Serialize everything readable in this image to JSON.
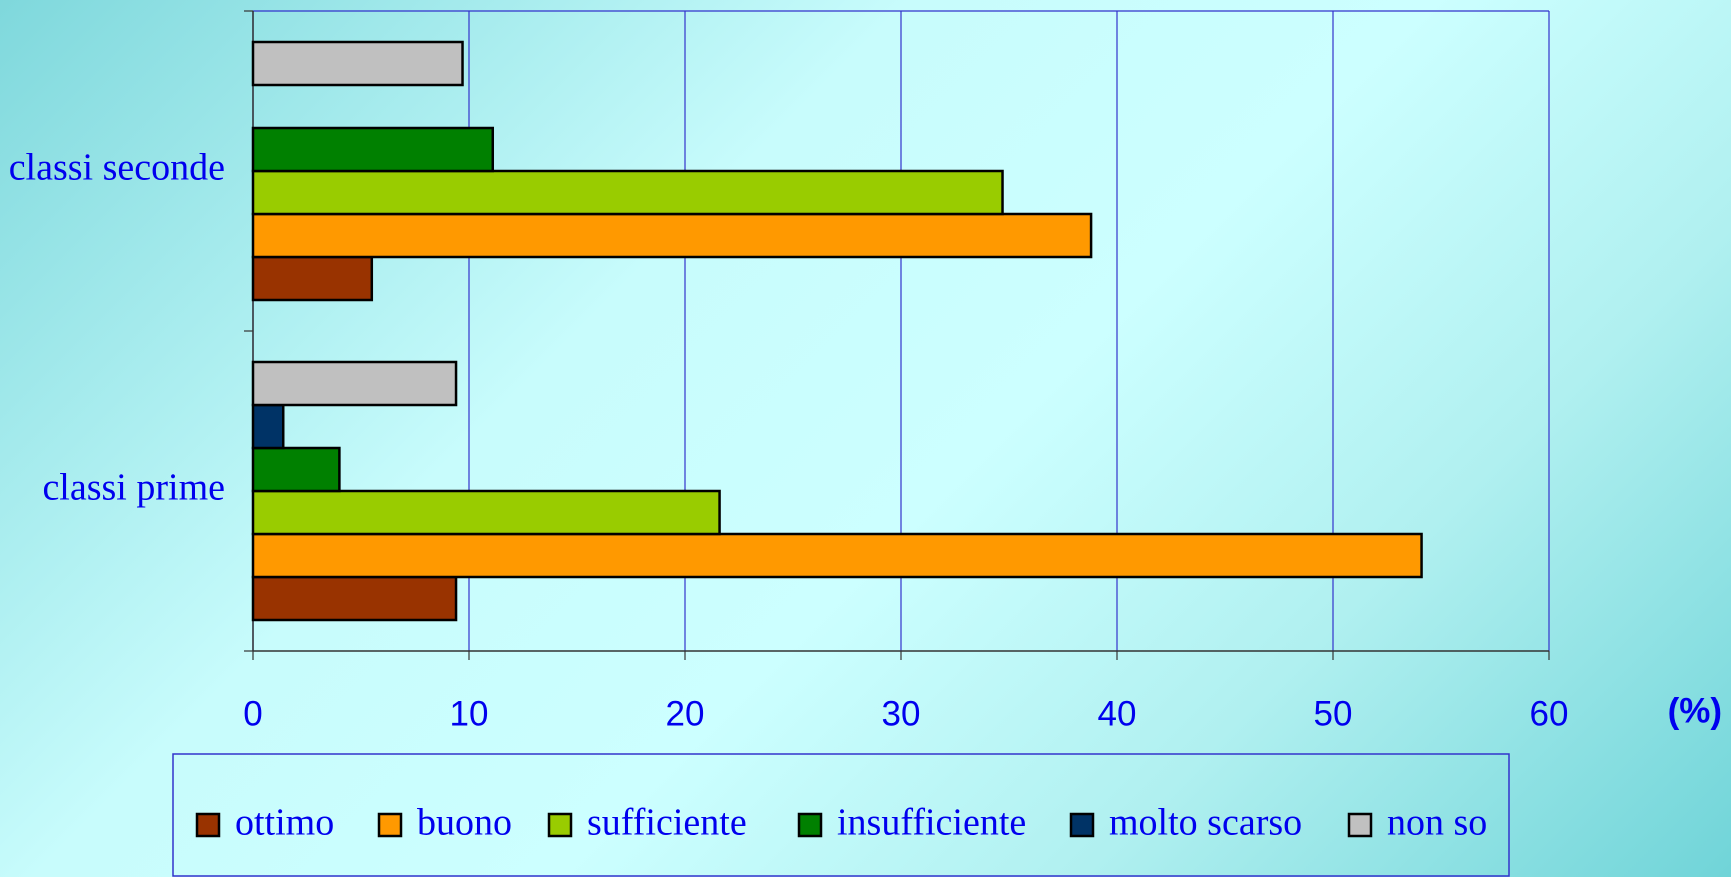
{
  "chart_data": {
    "type": "barh",
    "categories": [
      "classi prime",
      "classi seconde"
    ],
    "series": [
      {
        "name": "ottimo",
        "color": "#993300",
        "values": [
          9.4,
          5.5
        ]
      },
      {
        "name": "buono",
        "color": "#ff9900",
        "values": [
          54.1,
          38.8
        ]
      },
      {
        "name": "sufficiente",
        "color": "#99cc00",
        "values": [
          21.6,
          34.7
        ]
      },
      {
        "name": "insufficiente",
        "color": "#008000",
        "values": [
          4.0,
          11.1
        ]
      },
      {
        "name": "molto scarso",
        "color": "#003366",
        "values": [
          1.4,
          0
        ]
      },
      {
        "name": "non so",
        "color": "#c0c0c0",
        "values": [
          9.4,
          9.7
        ]
      }
    ],
    "xlabel": "(%)",
    "xlim": [
      0,
      60
    ],
    "xticks": [
      0,
      10,
      20,
      30,
      40,
      50,
      60
    ],
    "grid": true,
    "legend": "bottom"
  }
}
